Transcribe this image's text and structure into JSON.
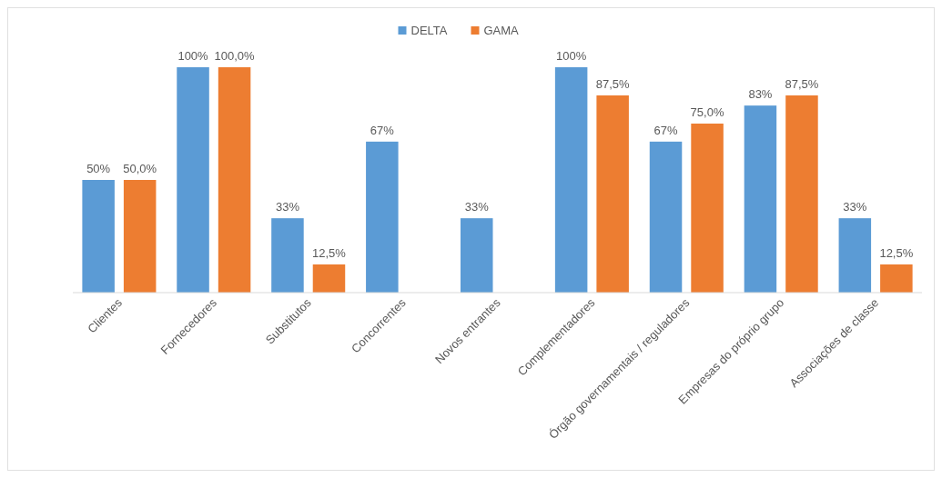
{
  "chart_data": {
    "type": "bar",
    "categories": [
      "Clientes",
      "Fornecedores",
      "Substitutos",
      "Concorrentes",
      "Novos entrantes",
      "Complementadores",
      "Órgão governamentais / reguladores",
      "Empresas do próprio grupo",
      "Associações de classe"
    ],
    "series": [
      {
        "name": "DELTA",
        "color": "#5b9bd5",
        "values": [
          50,
          100,
          33,
          67,
          33,
          100,
          67,
          83,
          33
        ],
        "value_labels": [
          "50%",
          "100%",
          "33%",
          "67%",
          "33%",
          "100%",
          "67%",
          "83%",
          "33%"
        ]
      },
      {
        "name": "GAMA",
        "color": "#ed7d31",
        "values": [
          50,
          100,
          12.5,
          null,
          null,
          87.5,
          75,
          87.5,
          12.5
        ],
        "value_labels": [
          "50,0%",
          "100,0%",
          "12,5%",
          null,
          null,
          "87,5%",
          "75,0%",
          "87,5%",
          "12,5%"
        ]
      }
    ],
    "ylim": [
      0,
      100
    ],
    "legend": "top"
  }
}
